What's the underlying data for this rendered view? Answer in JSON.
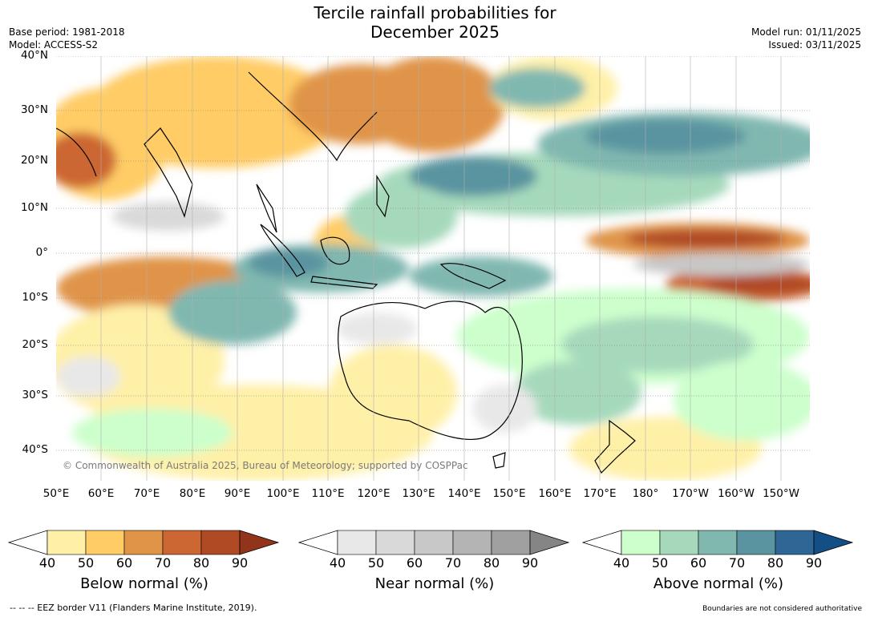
{
  "title_line1": "Tercile rainfall probabilities for",
  "title_line2": "December 2025",
  "meta_left": [
    "Base period: 1981-2018",
    "Model: ACCESS-S2"
  ],
  "meta_right": [
    "Model run: 01/11/2025",
    "Issued: 03/11/2025"
  ],
  "copyright": "© Commonwealth of Australia 2025, Bureau of Meteorology; supported by COSPPac",
  "lat_labels": [
    "40°N",
    "30°N",
    "20°N",
    "10°N",
    "0°",
    "10°S",
    "20°S",
    "30°S",
    "40°S"
  ],
  "lon_labels": [
    "50°E",
    "60°E",
    "70°E",
    "80°E",
    "90°E",
    "100°E",
    "110°E",
    "120°E",
    "130°E",
    "140°E",
    "150°E",
    "160°E",
    "170°E",
    "180°",
    "170°W",
    "160°W",
    "150°W"
  ],
  "colorbars": [
    {
      "label": "Below normal (%)",
      "ticks": [
        "40",
        "50",
        "60",
        "70",
        "80",
        "90"
      ],
      "colors": [
        "#fff0a8",
        "#ffcc66",
        "#e09448",
        "#cc6633",
        "#b04a25"
      ],
      "arrow_color": "#92331c"
    },
    {
      "label": "Near normal (%)",
      "ticks": [
        "40",
        "50",
        "60",
        "70",
        "80",
        "90"
      ],
      "colors": [
        "#e8e8e8",
        "#d9d9d9",
        "#c8c8c8",
        "#b4b4b4",
        "#a0a0a0"
      ],
      "arrow_color": "#858585"
    },
    {
      "label": "Above normal (%)",
      "ticks": [
        "40",
        "50",
        "60",
        "70",
        "80",
        "90"
      ],
      "colors": [
        "#ccffcc",
        "#a6d9bc",
        "#80b8b0",
        "#5a94a0",
        "#2e6696"
      ],
      "arrow_color": "#134e85"
    }
  ],
  "footer_left": "--  --  -- EEZ border V11 (Flanders Marine Institute, 2019).",
  "footer_right": "Boundaries are not considered authoritative"
}
